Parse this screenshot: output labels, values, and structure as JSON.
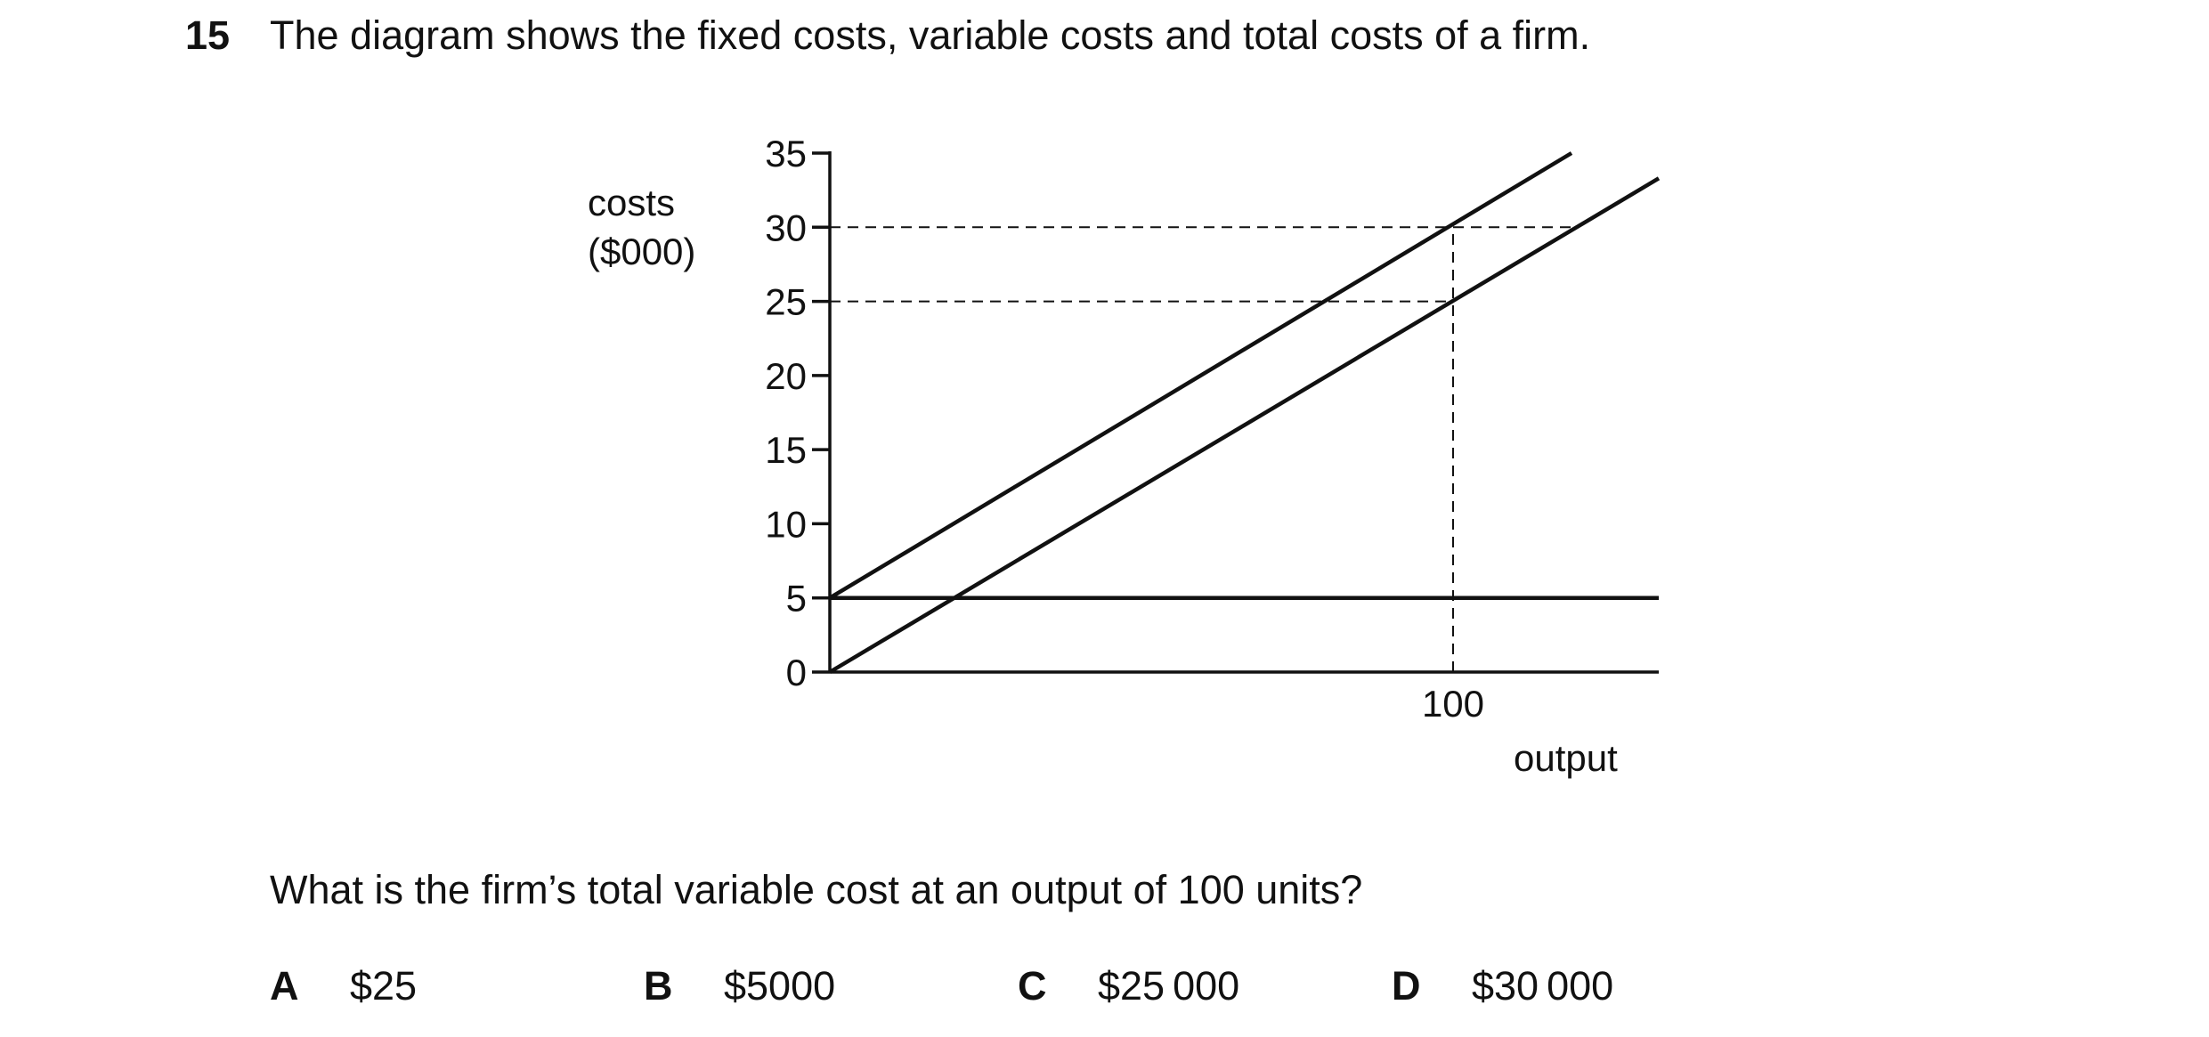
{
  "question_number": "15",
  "stem": "The diagram shows the fixed costs, variable costs and total costs of a firm.",
  "question": "What is the firm’s total variable cost at an output of 100 units?",
  "options": [
    {
      "letter": "A",
      "value": "$25"
    },
    {
      "letter": "B",
      "value": "$5000"
    },
    {
      "letter": "C",
      "value": "$25 000"
    },
    {
      "letter": "D",
      "value": "$30 000"
    }
  ],
  "chart_data": {
    "type": "line",
    "ylabel_line1": "costs",
    "ylabel_line2": "($000)",
    "xlabel": "output",
    "y_ticks": [
      0,
      5,
      10,
      15,
      20,
      25,
      30,
      35
    ],
    "x_ticks": [
      100
    ],
    "xlim": [
      0,
      133
    ],
    "ylim": [
      0,
      35
    ],
    "series": [
      {
        "values": [
          [
            0,
            5
          ],
          [
            119,
            35
          ]
        ]
      },
      {
        "values": [
          [
            0,
            0
          ],
          [
            133,
            33.3
          ]
        ]
      },
      {
        "values": [
          [
            0,
            5
          ],
          [
            133,
            5
          ]
        ]
      }
    ],
    "reference_lines": [
      {
        "axis": "y",
        "value": 30,
        "from_x": 0,
        "to_x": 119
      },
      {
        "axis": "y",
        "value": 25,
        "from_x": 0,
        "to_x": 100
      },
      {
        "axis": "x",
        "value": 100,
        "from_y": 0,
        "to_y": 30
      }
    ],
    "colors": {
      "line": "#111111",
      "dashed": "#111111"
    }
  }
}
